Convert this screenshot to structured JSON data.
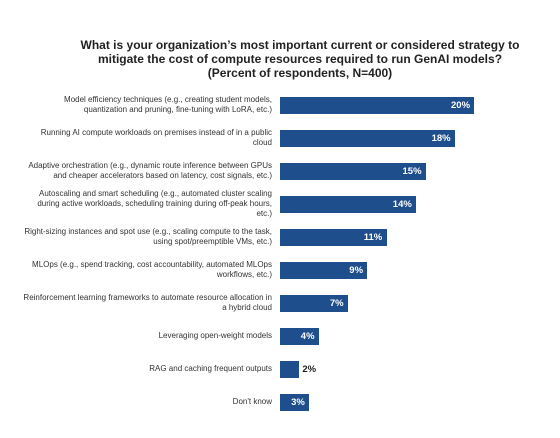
{
  "chart_data": {
    "type": "bar",
    "orientation": "horizontal",
    "title": "What is your organization’s most important current or considered strategy to mitigate the cost of compute resources required to run GenAI models? (Percent of respondents, N=400)",
    "categories": [
      "Model efficiency techniques (e.g., creating student models, quantization and pruning, fine-tuning with LoRA, etc.)",
      "Running AI compute workloads on premises instead of in a public cloud",
      "Adaptive orchestration (e.g., dynamic route inference between GPUs and cheaper accelerators based on latency, cost signals, etc.)",
      "Autoscaling and smart scheduling (e.g., automated cluster scaling during active workloads, scheduling training during off-peak hours, etc.)",
      "Right-sizing instances and spot use (e.g., scaling compute to the task, using spot/preemptible VMs, etc.)",
      "MLOps (e.g., spend tracking, cost accountability, automated MLOps workflows, etc.)",
      "Reinforcement learning frameworks to automate resource allocation in a hybrid cloud",
      "Leveraging open-weight models",
      "RAG and caching frequent outputs",
      "Don't know"
    ],
    "values": [
      20,
      18,
      15,
      14,
      11,
      9,
      7,
      4,
      2,
      3
    ],
    "value_labels": [
      "20%",
      "18%",
      "15%",
      "14%",
      "11%",
      "9%",
      "7%",
      "4%",
      "2%",
      "3%"
    ],
    "color": "#1f4e8c"
  }
}
